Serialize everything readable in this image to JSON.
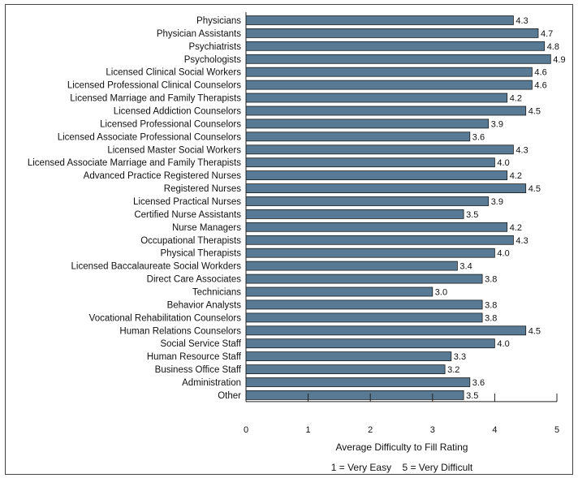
{
  "chart_data": {
    "type": "bar",
    "orientation": "horizontal",
    "categories": [
      "Physicians",
      "Physician Assistants",
      "Psychiatrists",
      "Psychologists",
      "Licensed Clinical Social Workers",
      "Licensed Professional Clinical Counselors",
      "Licensed Marriage and Family Therapists",
      "Licensed Addiction Counselors",
      "Licensed Professional Counselors",
      "Licensed Associate Professional Counselors",
      "Licensed Master Social Workers",
      "Licensed Associate Marriage and Family Therapists",
      "Advanced Practice Registered Nurses",
      "Registered Nurses",
      "Licensed Practical Nurses",
      "Certified Nurse Assistants",
      "Nurse Managers",
      "Occupational Therapists",
      "Physical Therapists",
      "Licensed Baccalaureate Social Workders",
      "Direct Care Associates",
      "Technicians",
      "Behavior Analysts",
      "Vocational Rehabilitation Counselors",
      "Human Relations Counselors",
      "Social Service Staff",
      "Human Resource Staff",
      "Business Office Staff",
      "Administration",
      "Other"
    ],
    "values": [
      4.3,
      4.7,
      4.8,
      4.9,
      4.6,
      4.6,
      4.2,
      4.5,
      3.9,
      3.6,
      4.3,
      4.0,
      4.2,
      4.5,
      3.9,
      3.5,
      4.2,
      4.3,
      4.0,
      3.4,
      3.8,
      3.0,
      3.8,
      3.8,
      4.5,
      4.0,
      3.3,
      3.2,
      3.6,
      3.5
    ],
    "value_labels": [
      "4.3",
      "4.7",
      "4.8",
      "4.9",
      "4.6",
      "4.6",
      "4.2",
      "4.5",
      "3.9",
      "3.6",
      "4.3",
      "4.0",
      "4.2",
      "4.5",
      "3.9",
      "3.5",
      "4.2",
      "4.3",
      "4.0",
      "3.4",
      "3.8",
      "3.0",
      "3.8",
      "3.8",
      "4.5",
      "4.0",
      "3.3",
      "3.2",
      "3.6",
      "3.5"
    ],
    "xlim": [
      0,
      5
    ],
    "x_ticks": [
      "0",
      "1",
      "2",
      "3",
      "4",
      "5"
    ],
    "xlabel": "Average Difficulty to Fill Rating",
    "scale_note": "1 = Very Easy    5 = Very Difficult",
    "title": "",
    "ylabel": "",
    "grid": false,
    "legend": "none",
    "bar_color": "#587a94"
  }
}
